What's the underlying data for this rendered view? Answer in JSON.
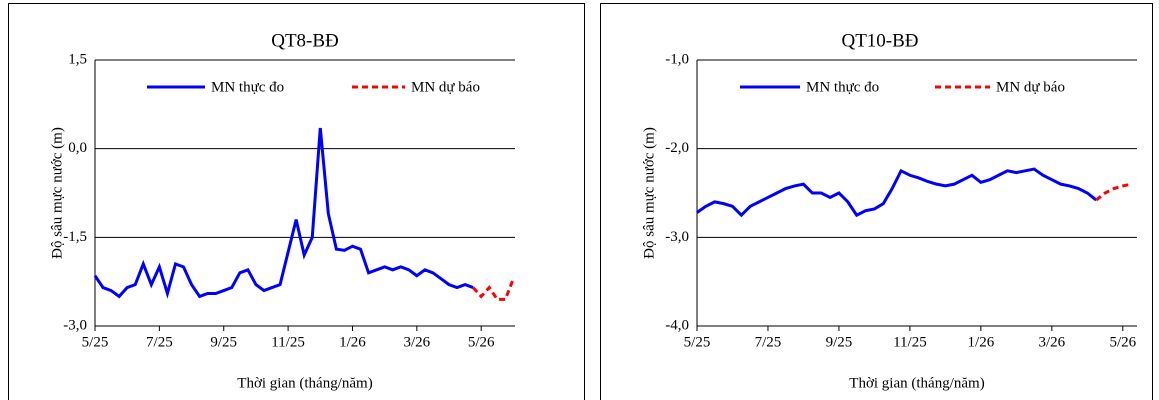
{
  "chart_data": [
    {
      "type": "line",
      "title": "QT8-BĐ",
      "xlabel": "Thời gian (tháng/năm)",
      "ylabel": "Độ sâu mực nước (m)",
      "xlim": [
        0,
        13.05
      ],
      "ylim": [
        -3,
        1.5
      ],
      "grid": true,
      "xticks": [
        {
          "value": 0,
          "label": "5/25"
        },
        {
          "value": 2,
          "label": "7/25"
        },
        {
          "value": 4,
          "label": "9/25"
        },
        {
          "value": 6,
          "label": "11/25"
        },
        {
          "value": 8,
          "label": "1/26"
        },
        {
          "value": 10,
          "label": "3/26"
        },
        {
          "value": 12,
          "label": "5/26"
        }
      ],
      "yticks": [
        {
          "value": 1.5,
          "label": "1,5"
        },
        {
          "value": 0,
          "label": "0,0"
        },
        {
          "value": -1.5,
          "label": "-1,5"
        },
        {
          "value": -3,
          "label": "-3,0"
        }
      ],
      "x": [
        0,
        0.25,
        0.5,
        0.75,
        1,
        1.25,
        1.5,
        1.75,
        2,
        2.25,
        2.5,
        2.75,
        3,
        3.25,
        3.5,
        3.75,
        4,
        4.25,
        4.5,
        4.75,
        5,
        5.25,
        5.5,
        5.75,
        6,
        6.25,
        6.5,
        6.75,
        7,
        7.25,
        7.5,
        7.75,
        8,
        8.25,
        8.5,
        8.75,
        9,
        9.25,
        9.5,
        9.75,
        10,
        10.25,
        10.5,
        10.75,
        11,
        11.25,
        11.5,
        11.75,
        12,
        12.25,
        12.5,
        12.75,
        13
      ],
      "series": [
        {
          "name": "MN thực đo",
          "color": "#0000ff",
          "style": "solid",
          "values": [
            -2.15,
            -2.35,
            -2.4,
            -2.5,
            -2.35,
            -2.3,
            -1.95,
            -2.3,
            -2.0,
            -2.45,
            -1.95,
            -2.0,
            -2.3,
            -2.5,
            -2.45,
            -2.45,
            -2.4,
            -2.35,
            -2.1,
            -2.05,
            -2.3,
            -2.4,
            -2.35,
            -2.3,
            -1.75,
            -1.2,
            -1.8,
            -1.5,
            0.35,
            -1.1,
            -1.7,
            -1.72,
            -1.65,
            -1.7,
            -2.1,
            -2.05,
            -2.0,
            -2.05,
            -2.0,
            -2.05,
            -2.15,
            -2.05,
            -2.1,
            -2.2,
            -2.3,
            -2.35,
            -2.3,
            -2.35,
            null,
            null,
            null,
            null,
            null
          ]
        },
        {
          "name": "MN dự báo",
          "color": "#ff0000",
          "style": "dashed",
          "values": [
            null,
            null,
            null,
            null,
            null,
            null,
            null,
            null,
            null,
            null,
            null,
            null,
            null,
            null,
            null,
            null,
            null,
            null,
            null,
            null,
            null,
            null,
            null,
            null,
            null,
            null,
            null,
            null,
            null,
            null,
            null,
            null,
            null,
            null,
            null,
            null,
            null,
            null,
            null,
            null,
            null,
            null,
            null,
            null,
            null,
            null,
            null,
            -2.35,
            -2.5,
            -2.35,
            -2.55,
            -2.55,
            -2.2
          ]
        }
      ]
    },
    {
      "type": "line",
      "title": "QT10-BĐ",
      "xlabel": "Thời gian (tháng/năm)",
      "ylabel": "Độ sâu mực nước (m)",
      "xlim": [
        0,
        12.4
      ],
      "ylim": [
        -4,
        -1
      ],
      "grid": true,
      "xticks": [
        {
          "value": 0,
          "label": "5/25"
        },
        {
          "value": 2,
          "label": "7/25"
        },
        {
          "value": 4,
          "label": "9/25"
        },
        {
          "value": 6,
          "label": "11/25"
        },
        {
          "value": 8,
          "label": "1/26"
        },
        {
          "value": 10,
          "label": "3/26"
        },
        {
          "value": 12,
          "label": "5/26"
        }
      ],
      "yticks": [
        {
          "value": -1,
          "label": "-1,0"
        },
        {
          "value": -2,
          "label": "-2,0"
        },
        {
          "value": -3,
          "label": "-3,0"
        },
        {
          "value": -4,
          "label": "-4,0"
        }
      ],
      "x": [
        0,
        0.25,
        0.5,
        0.75,
        1,
        1.25,
        1.5,
        1.75,
        2,
        2.25,
        2.5,
        2.75,
        3,
        3.25,
        3.5,
        3.75,
        4,
        4.25,
        4.5,
        4.75,
        5,
        5.25,
        5.5,
        5.75,
        6,
        6.25,
        6.5,
        6.75,
        7,
        7.25,
        7.5,
        7.75,
        8,
        8.25,
        8.5,
        8.75,
        9,
        9.25,
        9.5,
        9.75,
        10,
        10.25,
        10.5,
        10.75,
        11,
        11.25,
        11.5,
        11.75,
        12,
        12.25
      ],
      "series": [
        {
          "name": "MN thực đo",
          "color": "#0000ff",
          "style": "solid",
          "values": [
            -2.72,
            -2.65,
            -2.6,
            -2.62,
            -2.65,
            -2.75,
            -2.65,
            -2.6,
            -2.55,
            -2.5,
            -2.45,
            -2.42,
            -2.4,
            -2.5,
            -2.5,
            -2.55,
            -2.5,
            -2.6,
            -2.75,
            -2.7,
            -2.68,
            -2.62,
            -2.45,
            -2.25,
            -2.3,
            -2.33,
            -2.37,
            -2.4,
            -2.42,
            -2.4,
            -2.35,
            -2.3,
            -2.38,
            -2.35,
            -2.3,
            -2.25,
            -2.27,
            -2.25,
            -2.23,
            -2.3,
            -2.35,
            -2.4,
            -2.42,
            -2.45,
            -2.5,
            -2.58,
            null,
            null,
            null,
            null
          ]
        },
        {
          "name": "MN dự báo",
          "color": "#ff0000",
          "style": "dashed",
          "values": [
            null,
            null,
            null,
            null,
            null,
            null,
            null,
            null,
            null,
            null,
            null,
            null,
            null,
            null,
            null,
            null,
            null,
            null,
            null,
            null,
            null,
            null,
            null,
            null,
            null,
            null,
            null,
            null,
            null,
            null,
            null,
            null,
            null,
            null,
            null,
            null,
            null,
            null,
            null,
            null,
            null,
            null,
            null,
            null,
            null,
            -2.58,
            -2.5,
            -2.45,
            -2.42,
            -2.4
          ]
        }
      ]
    }
  ]
}
